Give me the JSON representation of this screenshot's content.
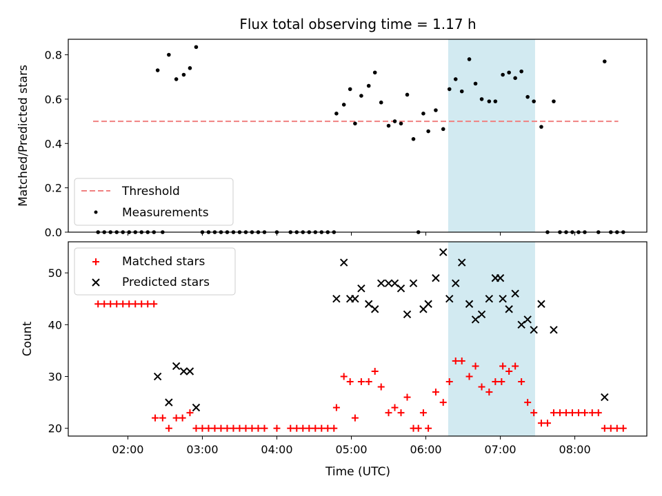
{
  "title": "Flux total observing time = 1.17 h",
  "colors": {
    "threshold": "#f08080",
    "measurements": "#000000",
    "matched": "#ff0000",
    "predicted": "#000000",
    "highlight": "#add8e6"
  },
  "chart_data": [
    {
      "type": "scatter",
      "ylabel": "Matched/Predicted stars",
      "ylim": [
        0,
        0.87
      ],
      "yticks": [
        0.0,
        0.2,
        0.4,
        0.6,
        0.8
      ],
      "ytick_labels": [
        "0.0",
        "0.2",
        "0.4",
        "0.6",
        "0.8"
      ],
      "highlight_span": [
        "06:18",
        "07:28"
      ],
      "legend_position": "lower-left",
      "threshold": {
        "name": "Threshold",
        "x": [
          "01:32",
          "08:35"
        ],
        "y": 0.5,
        "style": "dashed"
      },
      "series": [
        {
          "name": "Measurements",
          "marker": "dot",
          "points": [
            [
              "01:36",
              0
            ],
            [
              "01:41",
              0
            ],
            [
              "01:46",
              0
            ],
            [
              "01:51",
              0
            ],
            [
              "01:56",
              0
            ],
            [
              "02:01",
              0
            ],
            [
              "02:06",
              0
            ],
            [
              "02:11",
              0
            ],
            [
              "02:16",
              0
            ],
            [
              "02:21",
              0
            ],
            [
              "02:24",
              0.73
            ],
            [
              "02:28",
              0
            ],
            [
              "02:33",
              0.8
            ],
            [
              "02:39",
              0.69
            ],
            [
              "02:45",
              0.71
            ],
            [
              "02:50",
              0.74
            ],
            [
              "02:55",
              0.835
            ],
            [
              "03:00",
              0
            ],
            [
              "03:05",
              0
            ],
            [
              "03:10",
              0
            ],
            [
              "03:15",
              0
            ],
            [
              "03:20",
              0
            ],
            [
              "03:25",
              0
            ],
            [
              "03:30",
              0
            ],
            [
              "03:35",
              0
            ],
            [
              "03:40",
              0
            ],
            [
              "03:45",
              0
            ],
            [
              "03:50",
              0
            ],
            [
              "04:00",
              0
            ],
            [
              "04:11",
              0
            ],
            [
              "04:16",
              0
            ],
            [
              "04:21",
              0
            ],
            [
              "04:26",
              0
            ],
            [
              "04:31",
              0
            ],
            [
              "04:36",
              0
            ],
            [
              "04:41",
              0
            ],
            [
              "04:46",
              0
            ],
            [
              "04:48",
              0.535
            ],
            [
              "04:54",
              0.575
            ],
            [
              "04:59",
              0.645
            ],
            [
              "05:03",
              0.49
            ],
            [
              "05:08",
              0.615
            ],
            [
              "05:14",
              0.66
            ],
            [
              "05:19",
              0.72
            ],
            [
              "05:24",
              0.585
            ],
            [
              "05:30",
              0.48
            ],
            [
              "05:35",
              0.5
            ],
            [
              "05:40",
              0.49
            ],
            [
              "05:45",
              0.62
            ],
            [
              "05:50",
              0.42
            ],
            [
              "05:54",
              0
            ],
            [
              "05:58",
              0.535
            ],
            [
              "06:02",
              0.455
            ],
            [
              "06:08",
              0.55
            ],
            [
              "06:14",
              0.465
            ],
            [
              "06:19",
              0.645
            ],
            [
              "06:24",
              0.69
            ],
            [
              "06:29",
              0.635
            ],
            [
              "06:35",
              0.78
            ],
            [
              "06:40",
              0.67
            ],
            [
              "06:45",
              0.6
            ],
            [
              "06:51",
              0.59
            ],
            [
              "06:56",
              0.59
            ],
            [
              "07:02",
              0.71
            ],
            [
              "07:07",
              0.72
            ],
            [
              "07:12",
              0.695
            ],
            [
              "07:17",
              0.725
            ],
            [
              "07:22",
              0.61
            ],
            [
              "07:27",
              0.59
            ],
            [
              "07:33",
              0.475
            ],
            [
              "07:38",
              0
            ],
            [
              "07:43",
              0.59
            ],
            [
              "07:48",
              0
            ],
            [
              "07:53",
              0
            ],
            [
              "07:58",
              0
            ],
            [
              "08:03",
              0
            ],
            [
              "08:08",
              0
            ],
            [
              "08:19",
              0
            ],
            [
              "08:24",
              0.77
            ],
            [
              "08:29",
              0
            ],
            [
              "08:34",
              0
            ],
            [
              "08:39",
              0
            ]
          ]
        }
      ]
    },
    {
      "type": "scatter",
      "xlabel": "Time (UTC)",
      "ylabel": "Count",
      "ylim": [
        18.5,
        56
      ],
      "yticks": [
        20,
        30,
        40,
        50
      ],
      "ytick_labels": [
        "20",
        "30",
        "40",
        "50"
      ],
      "xlim": [
        "01:12",
        "08:58"
      ],
      "xticks": [
        "02:00",
        "03:00",
        "04:00",
        "05:00",
        "06:00",
        "07:00",
        "08:00"
      ],
      "highlight_span": [
        "06:18",
        "07:28"
      ],
      "legend_position": "upper-left",
      "series": [
        {
          "name": "Matched stars",
          "marker": "plus",
          "points": [
            [
              "01:36",
              44
            ],
            [
              "01:41",
              44
            ],
            [
              "01:46",
              44
            ],
            [
              "01:51",
              44
            ],
            [
              "01:56",
              44
            ],
            [
              "02:01",
              44
            ],
            [
              "02:06",
              44
            ],
            [
              "02:11",
              44
            ],
            [
              "02:16",
              44
            ],
            [
              "02:21",
              44
            ],
            [
              "02:22",
              22
            ],
            [
              "02:28",
              22
            ],
            [
              "02:33",
              20
            ],
            [
              "02:39",
              22
            ],
            [
              "02:44",
              22
            ],
            [
              "02:50",
              23
            ],
            [
              "02:55",
              20
            ],
            [
              "03:00",
              20
            ],
            [
              "03:05",
              20
            ],
            [
              "03:10",
              20
            ],
            [
              "03:15",
              20
            ],
            [
              "03:20",
              20
            ],
            [
              "03:25",
              20
            ],
            [
              "03:30",
              20
            ],
            [
              "03:35",
              20
            ],
            [
              "03:40",
              20
            ],
            [
              "03:45",
              20
            ],
            [
              "03:50",
              20
            ],
            [
              "04:00",
              20
            ],
            [
              "04:11",
              20
            ],
            [
              "04:16",
              20
            ],
            [
              "04:21",
              20
            ],
            [
              "04:26",
              20
            ],
            [
              "04:31",
              20
            ],
            [
              "04:36",
              20
            ],
            [
              "04:41",
              20
            ],
            [
              "04:46",
              20
            ],
            [
              "04:48",
              24
            ],
            [
              "04:54",
              30
            ],
            [
              "04:59",
              29
            ],
            [
              "05:03",
              22
            ],
            [
              "05:08",
              29
            ],
            [
              "05:14",
              29
            ],
            [
              "05:19",
              31
            ],
            [
              "05:24",
              28
            ],
            [
              "05:30",
              23
            ],
            [
              "05:35",
              24
            ],
            [
              "05:40",
              23
            ],
            [
              "05:45",
              26
            ],
            [
              "05:50",
              20
            ],
            [
              "05:54",
              20
            ],
            [
              "05:58",
              23
            ],
            [
              "06:02",
              20
            ],
            [
              "06:08",
              27
            ],
            [
              "06:14",
              25
            ],
            [
              "06:19",
              29
            ],
            [
              "06:24",
              33
            ],
            [
              "06:29",
              33
            ],
            [
              "06:35",
              30
            ],
            [
              "06:40",
              32
            ],
            [
              "06:45",
              28
            ],
            [
              "06:51",
              27
            ],
            [
              "06:56",
              29
            ],
            [
              "07:01",
              29
            ],
            [
              "07:02",
              32
            ],
            [
              "07:07",
              31
            ],
            [
              "07:12",
              32
            ],
            [
              "07:17",
              29
            ],
            [
              "07:22",
              25
            ],
            [
              "07:27",
              23
            ],
            [
              "07:33",
              21
            ],
            [
              "07:38",
              21
            ],
            [
              "07:43",
              23
            ],
            [
              "07:48",
              23
            ],
            [
              "07:53",
              23
            ],
            [
              "07:58",
              23
            ],
            [
              "08:03",
              23
            ],
            [
              "08:08",
              23
            ],
            [
              "08:14",
              23
            ],
            [
              "08:19",
              23
            ],
            [
              "08:24",
              20
            ],
            [
              "08:29",
              20
            ],
            [
              "08:34",
              20
            ],
            [
              "08:39",
              20
            ]
          ]
        },
        {
          "name": "Predicted stars",
          "marker": "x",
          "points": [
            [
              "02:24",
              30
            ],
            [
              "02:33",
              25
            ],
            [
              "02:39",
              32
            ],
            [
              "02:45",
              31
            ],
            [
              "02:50",
              31
            ],
            [
              "02:55",
              24
            ],
            [
              "04:48",
              45
            ],
            [
              "04:54",
              52
            ],
            [
              "04:59",
              45
            ],
            [
              "05:03",
              45
            ],
            [
              "05:08",
              47
            ],
            [
              "05:14",
              44
            ],
            [
              "05:19",
              43
            ],
            [
              "05:24",
              48
            ],
            [
              "05:30",
              48
            ],
            [
              "05:35",
              48
            ],
            [
              "05:40",
              47
            ],
            [
              "05:45",
              42
            ],
            [
              "05:50",
              48
            ],
            [
              "05:58",
              43
            ],
            [
              "06:02",
              44
            ],
            [
              "06:08",
              49
            ],
            [
              "06:14",
              54
            ],
            [
              "06:19",
              45
            ],
            [
              "06:24",
              48
            ],
            [
              "06:29",
              52
            ],
            [
              "06:35",
              44
            ],
            [
              "06:40",
              41
            ],
            [
              "06:45",
              42
            ],
            [
              "06:51",
              45
            ],
            [
              "06:56",
              49
            ],
            [
              "07:00",
              49
            ],
            [
              "07:02",
              45
            ],
            [
              "07:07",
              43
            ],
            [
              "07:12",
              46
            ],
            [
              "07:17",
              40
            ],
            [
              "07:22",
              41
            ],
            [
              "07:27",
              39
            ],
            [
              "07:33",
              44
            ],
            [
              "07:43",
              39
            ],
            [
              "08:24",
              26
            ]
          ]
        }
      ]
    }
  ]
}
